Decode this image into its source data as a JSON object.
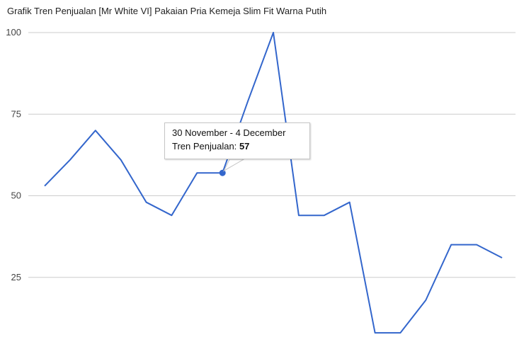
{
  "chart_data": {
    "type": "line",
    "title": "Grafik Tren Penjualan [Mr White VI] Pakaian Pria Kemeja Slim Fit Warna Putih",
    "xlabel": "",
    "ylabel": "",
    "ylim": [
      0,
      100
    ],
    "yticks": [
      25,
      50,
      75,
      100
    ],
    "grid": true,
    "series": [
      {
        "color": "#3366cc",
        "values": [
          53,
          61,
          70,
          61,
          48,
          44,
          57,
          57,
          79,
          100,
          44,
          44,
          48,
          8,
          8,
          18,
          35,
          35,
          31
        ]
      }
    ],
    "tooltip": {
      "point_index": 7,
      "date_range": "30 November - 4 December",
      "series_label": "Tren Penjualan:",
      "value": "57"
    }
  }
}
